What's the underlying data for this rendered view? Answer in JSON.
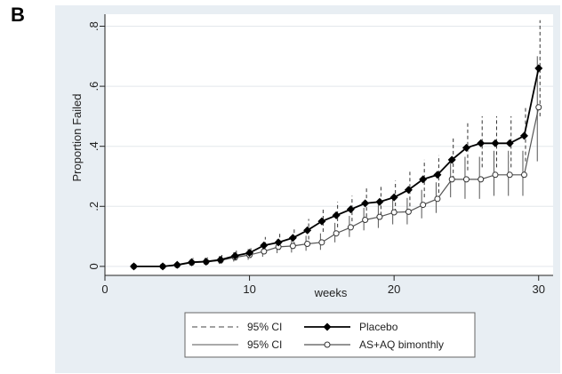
{
  "panel_label": "B",
  "chart_data": {
    "type": "line",
    "xlabel": "weeks",
    "ylabel": "Proportion Failed",
    "xlim": [
      0,
      31
    ],
    "ylim": [
      -0.03,
      0.84
    ],
    "x_ticks": [
      0,
      10,
      20,
      30
    ],
    "x_tick_labels": [
      "0",
      "10",
      "20",
      "30"
    ],
    "y_ticks": [
      0,
      0.2,
      0.4,
      0.6,
      0.8
    ],
    "y_tick_labels": [
      "0",
      ".2",
      ".4",
      ".6",
      ".8"
    ],
    "grid": true,
    "background": "#e8eef3",
    "legend_position": "bottom",
    "legend": [
      {
        "label": "95% CI",
        "style": "dashed"
      },
      {
        "label": "Placebo",
        "style": "filled-diamond"
      },
      {
        "label": "95% CI",
        "style": "solid"
      },
      {
        "label": "AS+AQ bimonthly",
        "style": "hollow-circle"
      }
    ],
    "series": [
      {
        "name": "Placebo",
        "marker": "diamond",
        "color": "#000000",
        "x": [
          2,
          4,
          5,
          6,
          7,
          8,
          9,
          10,
          11,
          12,
          13,
          14,
          15,
          16,
          17,
          18,
          19,
          20,
          21,
          22,
          23,
          24,
          25,
          26,
          27,
          28,
          29,
          30
        ],
        "values": [
          0.0,
          0.0,
          0.005,
          0.014,
          0.016,
          0.022,
          0.035,
          0.045,
          0.07,
          0.08,
          0.095,
          0.12,
          0.15,
          0.17,
          0.19,
          0.21,
          0.215,
          0.23,
          0.255,
          0.29,
          0.305,
          0.355,
          0.395,
          0.41,
          0.41,
          0.41,
          0.435,
          0.66
        ],
        "ci_lower": [
          0.0,
          0.0,
          0.0,
          0.004,
          0.006,
          0.01,
          0.02,
          0.028,
          0.048,
          0.055,
          0.07,
          0.09,
          0.115,
          0.13,
          0.15,
          0.165,
          0.17,
          0.18,
          0.2,
          0.23,
          0.245,
          0.29,
          0.32,
          0.33,
          0.33,
          0.33,
          0.35,
          0.5
        ],
        "ci_upper": [
          0.0,
          0.0,
          0.015,
          0.028,
          0.03,
          0.038,
          0.055,
          0.068,
          0.098,
          0.11,
          0.128,
          0.158,
          0.19,
          0.215,
          0.235,
          0.26,
          0.265,
          0.285,
          0.315,
          0.355,
          0.37,
          0.43,
          0.48,
          0.5,
          0.5,
          0.5,
          0.53,
          0.82
        ]
      },
      {
        "name": "AS+AQ bimonthly",
        "marker": "circle",
        "color": "#555555",
        "x": [
          2,
          4,
          5,
          6,
          7,
          8,
          9,
          10,
          11,
          12,
          13,
          14,
          15,
          16,
          17,
          18,
          19,
          20,
          21,
          22,
          23,
          24,
          25,
          26,
          27,
          28,
          29,
          30
        ],
        "values": [
          0.0,
          0.0,
          0.004,
          0.012,
          0.015,
          0.02,
          0.03,
          0.038,
          0.05,
          0.065,
          0.068,
          0.075,
          0.08,
          0.11,
          0.13,
          0.155,
          0.165,
          0.18,
          0.182,
          0.205,
          0.225,
          0.29,
          0.29,
          0.29,
          0.305,
          0.305,
          0.305,
          0.53
        ],
        "ci_lower": [
          0.0,
          0.0,
          0.0,
          0.003,
          0.005,
          0.008,
          0.016,
          0.022,
          0.032,
          0.044,
          0.046,
          0.052,
          0.055,
          0.08,
          0.098,
          0.12,
          0.128,
          0.14,
          0.14,
          0.16,
          0.178,
          0.23,
          0.225,
          0.225,
          0.235,
          0.235,
          0.235,
          0.35
        ],
        "ci_upper": [
          0.0,
          0.0,
          0.012,
          0.024,
          0.028,
          0.034,
          0.047,
          0.058,
          0.072,
          0.09,
          0.094,
          0.102,
          0.11,
          0.145,
          0.168,
          0.195,
          0.207,
          0.225,
          0.228,
          0.255,
          0.28,
          0.36,
          0.365,
          0.365,
          0.385,
          0.385,
          0.385,
          0.7
        ]
      }
    ]
  }
}
